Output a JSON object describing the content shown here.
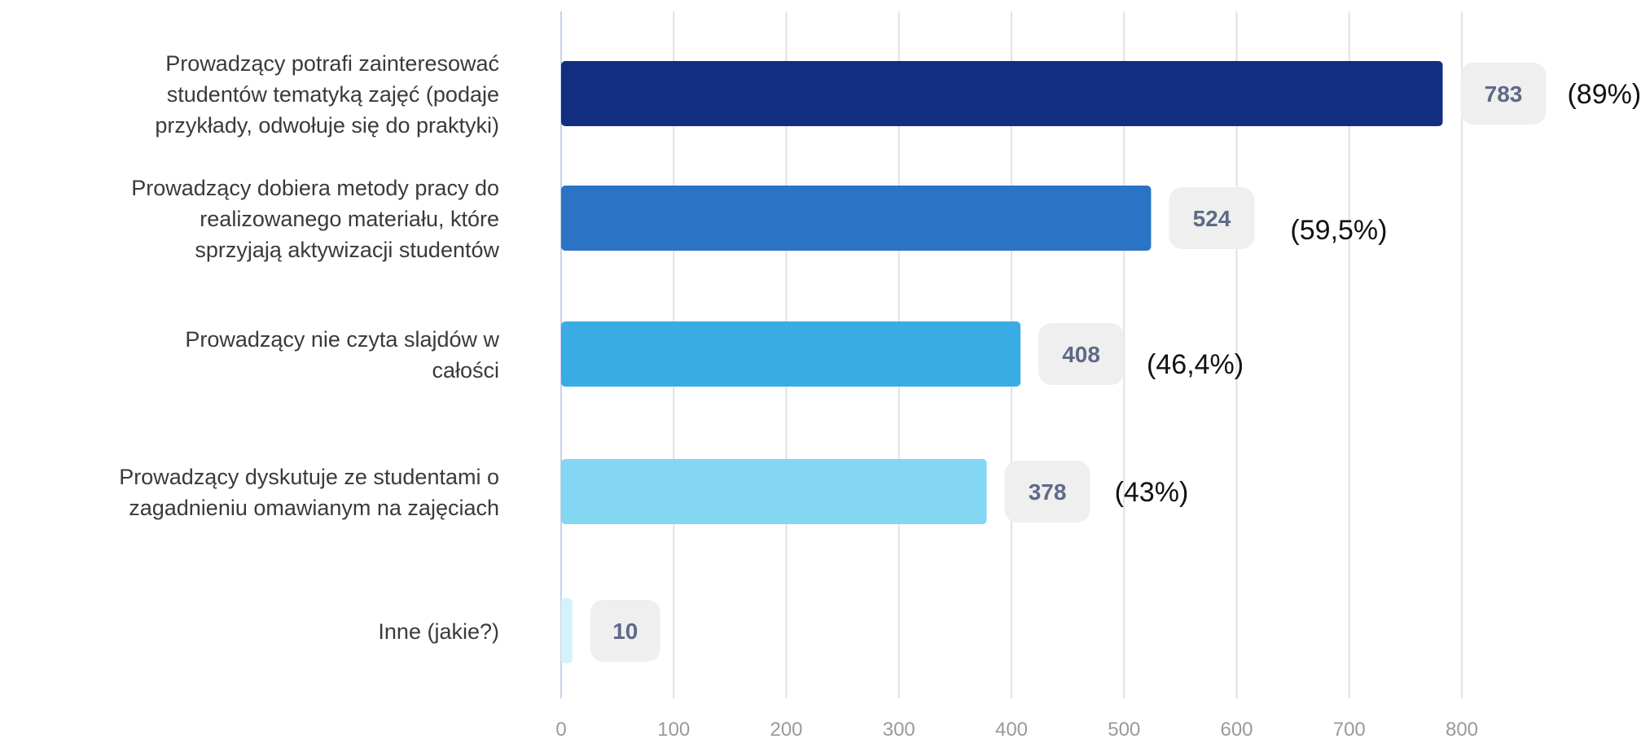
{
  "chart_data": {
    "type": "bar",
    "orientation": "horizontal",
    "categories": [
      [
        "Prowadzący potrafi zainteresować",
        "studentów tematyką zajęć (podaje",
        "przykłady, odwołuje się do praktyki)"
      ],
      [
        "Prowadzący dobiera metody pracy do",
        "realizowanego materiału, które",
        "sprzyjają aktywizacji studentów"
      ],
      [
        "Prowadzący nie czyta slajdów w",
        "całości"
      ],
      [
        "Prowadzący dyskutuje ze studentami o",
        "zagadnieniu omawianym na zajęciach"
      ],
      [
        "Inne (jakie?)"
      ]
    ],
    "values": [
      783,
      524,
      408,
      378,
      10
    ],
    "value_labels": [
      "783",
      "524",
      "408",
      "378",
      "10"
    ],
    "percent_labels": [
      "(89%)",
      "(59,5%)",
      "(46,4%)",
      "(43%)",
      ""
    ],
    "colors": [
      "#112e80",
      "#2b73c4",
      "#3aace4",
      "#84d7f2",
      "#d4f2fb"
    ],
    "xlim": [
      0,
      800
    ],
    "xticks": [
      "0",
      "100",
      "200",
      "300",
      "400",
      "500",
      "600",
      "700",
      "800"
    ],
    "grid": true,
    "title": "",
    "xlabel": "",
    "ylabel": ""
  }
}
